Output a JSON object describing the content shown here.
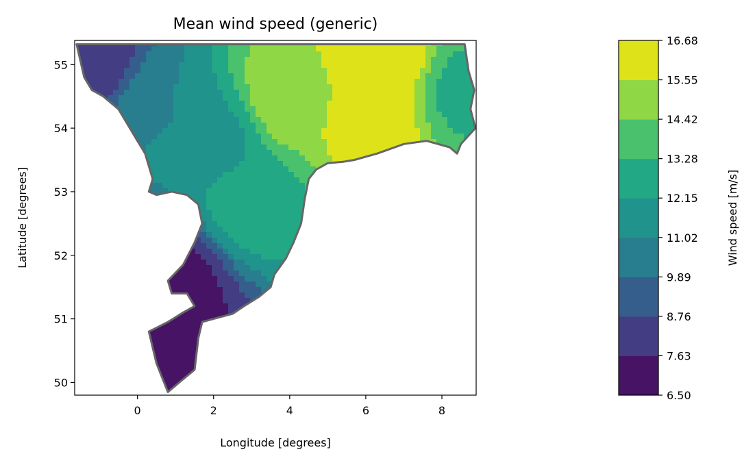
{
  "chart_data": {
    "type": "heatmap",
    "title": "Mean wind speed (generic)",
    "xlabel": "Longitude [degrees]",
    "ylabel": "Latitude [degrees]",
    "xlim": [
      -1.65,
      8.9
    ],
    "ylim": [
      49.8,
      55.38
    ],
    "xticks": [
      0,
      2,
      4,
      6,
      8
    ],
    "yticks": [
      50,
      51,
      52,
      53,
      54,
      55
    ],
    "grid": false,
    "colormap": "viridis",
    "colorbar": {
      "label": "Wind speed [m/s]",
      "levels": [
        6.5,
        7.63,
        8.76,
        9.89,
        11.02,
        12.15,
        13.28,
        14.42,
        15.55,
        16.68
      ],
      "tick_labels": [
        "6.50",
        "7.63",
        "8.76",
        "9.89",
        "11.02",
        "12.15",
        "13.28",
        "14.42",
        "15.55",
        "16.68"
      ],
      "colors": [
        "#471365",
        "#433d84",
        "#355e8d",
        "#287d8e",
        "#20938c",
        "#22a884",
        "#4ac16d",
        "#8fd744",
        "#dde318"
      ]
    },
    "domain_boundary": [
      [
        -1.6,
        55.32
      ],
      [
        8.6,
        55.32
      ],
      [
        8.7,
        54.9
      ],
      [
        8.85,
        54.6
      ],
      [
        8.75,
        54.3
      ],
      [
        8.88,
        54.0
      ],
      [
        8.5,
        53.75
      ],
      [
        8.4,
        53.6
      ],
      [
        8.2,
        53.7
      ],
      [
        7.6,
        53.8
      ],
      [
        7.0,
        53.75
      ],
      [
        6.3,
        53.6
      ],
      [
        5.7,
        53.5
      ],
      [
        5.4,
        53.47
      ],
      [
        5.0,
        53.45
      ],
      [
        4.7,
        53.35
      ],
      [
        4.5,
        53.2
      ],
      [
        4.4,
        52.9
      ],
      [
        4.3,
        52.5
      ],
      [
        4.1,
        52.2
      ],
      [
        3.9,
        51.95
      ],
      [
        3.6,
        51.7
      ],
      [
        3.5,
        51.5
      ],
      [
        3.2,
        51.35
      ],
      [
        2.8,
        51.2
      ],
      [
        2.5,
        51.08
      ],
      [
        2.0,
        51.0
      ],
      [
        1.7,
        50.95
      ],
      [
        1.6,
        50.7
      ],
      [
        1.5,
        50.2
      ],
      [
        1.1,
        50.0
      ],
      [
        0.8,
        49.85
      ],
      [
        0.5,
        50.3
      ],
      [
        0.3,
        50.8
      ],
      [
        0.8,
        50.95
      ],
      [
        1.2,
        51.1
      ],
      [
        1.5,
        51.2
      ],
      [
        1.3,
        51.4
      ],
      [
        0.9,
        51.4
      ],
      [
        0.8,
        51.6
      ],
      [
        1.2,
        51.85
      ],
      [
        1.5,
        52.2
      ],
      [
        1.7,
        52.5
      ],
      [
        1.6,
        52.8
      ],
      [
        1.3,
        52.95
      ],
      [
        0.9,
        53.0
      ],
      [
        0.5,
        52.95
      ],
      [
        0.3,
        53.0
      ],
      [
        0.4,
        53.2
      ],
      [
        0.2,
        53.6
      ],
      [
        0.0,
        53.8
      ],
      [
        -0.3,
        54.1
      ],
      [
        -0.5,
        54.3
      ],
      [
        -0.9,
        54.5
      ],
      [
        -1.2,
        54.6
      ],
      [
        -1.4,
        54.8
      ]
    ],
    "field_hotspots": [
      {
        "lon": 6.5,
        "lat": 55.1,
        "value": 16.6
      },
      {
        "lon": 6.2,
        "lat": 54.0,
        "value": 16.2
      },
      {
        "lon": 4.0,
        "lat": 54.5,
        "value": 15.3
      },
      {
        "lon": 3.0,
        "lat": 52.8,
        "value": 12.8
      },
      {
        "lon": 2.0,
        "lat": 53.8,
        "value": 11.8
      },
      {
        "lon": 0.5,
        "lat": 54.3,
        "value": 11.0
      },
      {
        "lon": -1.2,
        "lat": 55.0,
        "value": 8.0
      },
      {
        "lon": 1.0,
        "lat": 50.5,
        "value": 7.0
      },
      {
        "lon": 1.0,
        "lat": 51.6,
        "value": 7.2
      },
      {
        "lon": 8.6,
        "lat": 54.6,
        "value": 13.0
      }
    ]
  }
}
